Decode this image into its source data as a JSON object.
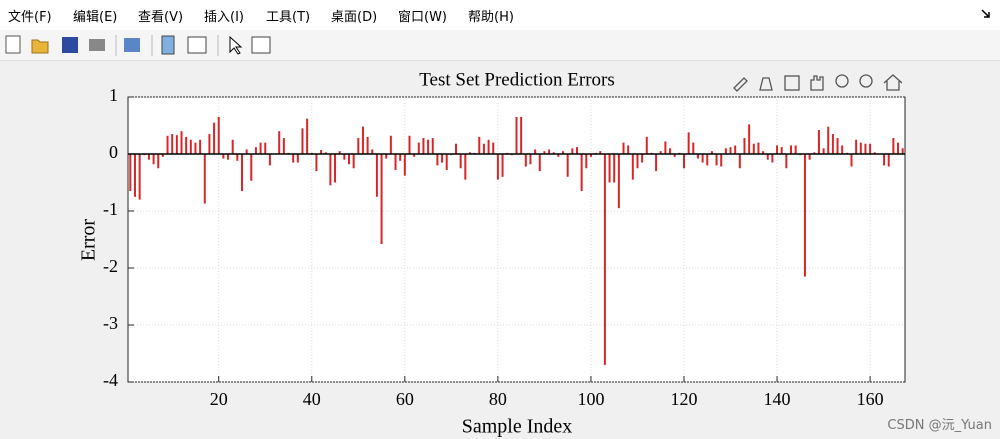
{
  "menu": [
    "文件(F)",
    "编辑(E)",
    "查看(V)",
    "插入(I)",
    "工具(T)",
    "桌面(D)",
    "窗口(W)",
    "帮助(H)"
  ],
  "watermark": "CSDN @沅_Yuan",
  "chart_data": {
    "type": "bar",
    "title": "Test Set Prediction Errors",
    "x_label": "Sample Index",
    "y_label": "Error",
    "color": "#d62728",
    "grid": true,
    "xlim": [
      0.5,
      167.5
    ],
    "xticks": [
      20,
      40,
      60,
      80,
      100,
      120,
      140,
      160
    ],
    "ylim": [
      -4,
      1
    ],
    "yticks": [
      -4,
      -3,
      -2,
      -1,
      0,
      1
    ],
    "x": [
      1,
      2,
      3,
      4,
      5,
      6,
      7,
      8,
      9,
      10,
      11,
      12,
      13,
      14,
      15,
      16,
      17,
      18,
      19,
      20,
      21,
      22,
      23,
      24,
      25,
      26,
      27,
      28,
      29,
      30,
      31,
      32,
      33,
      34,
      35,
      36,
      37,
      38,
      39,
      40,
      41,
      42,
      43,
      44,
      45,
      46,
      47,
      48,
      49,
      50,
      51,
      52,
      53,
      54,
      55,
      56,
      57,
      58,
      59,
      60,
      61,
      62,
      63,
      64,
      65,
      66,
      67,
      68,
      69,
      70,
      71,
      72,
      73,
      74,
      75,
      76,
      77,
      78,
      79,
      80,
      81,
      82,
      83,
      84,
      85,
      86,
      87,
      88,
      89,
      90,
      91,
      92,
      93,
      94,
      95,
      96,
      97,
      98,
      99,
      100,
      101,
      102,
      103,
      104,
      105,
      106,
      107,
      108,
      109,
      110,
      111,
      112,
      113,
      114,
      115,
      116,
      117,
      118,
      119,
      120,
      121,
      122,
      123,
      124,
      125,
      126,
      127,
      128,
      129,
      130,
      131,
      132,
      133,
      134,
      135,
      136,
      137,
      138,
      139,
      140,
      141,
      142,
      143,
      144,
      145,
      146,
      147,
      148,
      149,
      150,
      151,
      152,
      153,
      154,
      155,
      156,
      157,
      158,
      159,
      160,
      161,
      162,
      163,
      164,
      165,
      166,
      167
    ],
    "values": [
      -0.65,
      -0.75,
      -0.8,
      -0.02,
      -0.1,
      -0.18,
      -0.25,
      -0.05,
      0.32,
      0.35,
      0.33,
      0.4,
      0.3,
      0.25,
      0.2,
      0.25,
      -0.87,
      0.35,
      0.55,
      0.65,
      -0.08,
      -0.1,
      0.25,
      -0.12,
      -0.65,
      0.08,
      -0.47,
      0.12,
      0.2,
      0.2,
      -0.2,
      0.0,
      0.4,
      0.28,
      0.02,
      -0.15,
      -0.15,
      0.45,
      0.62,
      0.02,
      -0.3,
      0.07,
      0.03,
      -0.55,
      -0.5,
      0.05,
      -0.1,
      -0.18,
      -0.25,
      0.28,
      0.48,
      0.3,
      0.08,
      -0.75,
      -1.58,
      -0.08,
      0.32,
      -0.28,
      -0.12,
      -0.38,
      0.32,
      -0.05,
      0.2,
      0.28,
      0.25,
      0.28,
      -0.2,
      -0.15,
      -0.28,
      -0.02,
      0.18,
      -0.25,
      -0.45,
      0.03,
      0.02,
      0.3,
      0.18,
      0.25,
      0.2,
      -0.45,
      -0.4,
      0.02,
      -0.02,
      0.65,
      0.65,
      -0.22,
      -0.18,
      0.08,
      -0.3,
      0.05,
      0.08,
      0.03,
      -0.05,
      0.05,
      -0.4,
      0.1,
      0.12,
      -0.65,
      -0.25,
      -0.05,
      0.02,
      0.05,
      -3.7,
      -0.5,
      -0.5,
      -0.95,
      0.2,
      0.15,
      -0.45,
      -0.25,
      -0.15,
      0.3,
      0.02,
      -0.3,
      0.05,
      0.22,
      0.1,
      -0.05,
      0.02,
      -0.25,
      0.38,
      0.2,
      -0.08,
      -0.15,
      -0.2,
      0.05,
      -0.2,
      -0.22,
      0.1,
      0.12,
      0.15,
      -0.25,
      0.28,
      0.52,
      0.18,
      0.2,
      0.05,
      -0.1,
      -0.15,
      0.15,
      0.12,
      -0.25,
      0.15,
      0.15,
      -0.02,
      -2.15,
      -0.1,
      0.03,
      0.42,
      0.1,
      0.48,
      0.35,
      0.28,
      0.15,
      0.02,
      -0.22,
      0.25,
      0.2,
      0.18,
      0.18,
      0.03,
      0.0,
      -0.2,
      -0.22,
      0.28,
      0.2,
      0.1
    ]
  }
}
